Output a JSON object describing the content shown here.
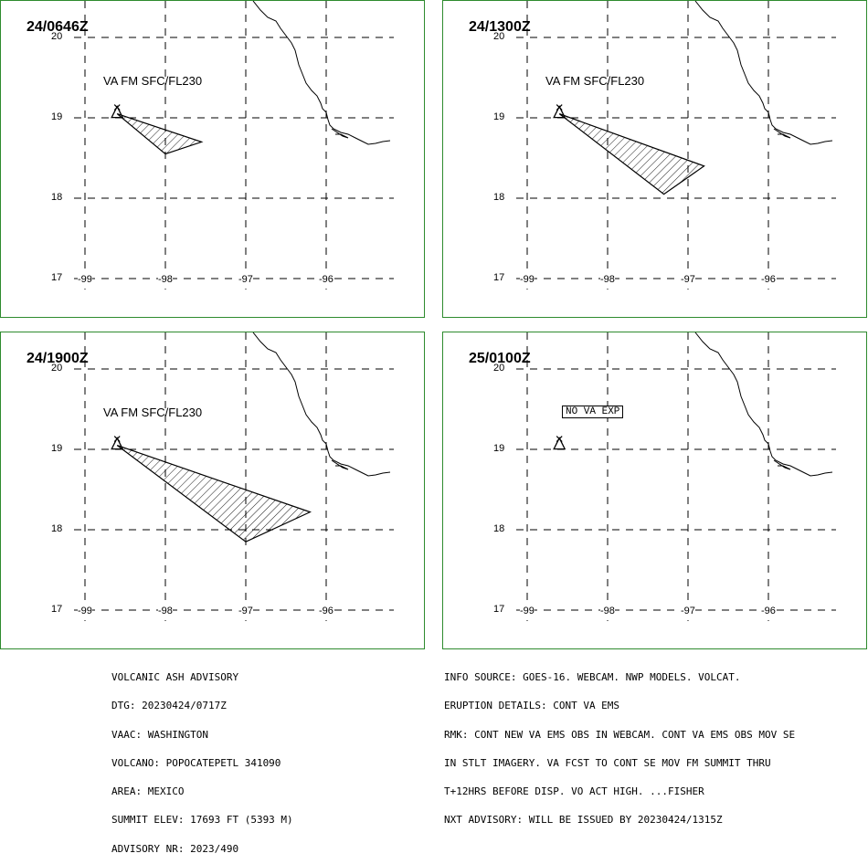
{
  "panels": [
    {
      "time": "24/0646Z",
      "label": "VA FM SFC/FL230",
      "polygon": [
        [
          -98.6,
          19.05
        ],
        [
          -97.55,
          18.7
        ],
        [
          -98.0,
          18.55
        ]
      ]
    },
    {
      "time": "24/1300Z",
      "label": "VA FM SFC/FL230",
      "polygon": [
        [
          -98.6,
          19.05
        ],
        [
          -96.8,
          18.4
        ],
        [
          -97.3,
          18.05
        ]
      ]
    },
    {
      "time": "24/1900Z",
      "label": "VA FM SFC/FL230",
      "polygon": [
        [
          -98.6,
          19.05
        ],
        [
          -96.2,
          18.22
        ],
        [
          -97.0,
          17.85
        ]
      ]
    },
    {
      "time": "25/0100Z",
      "label": "NO VA EXP",
      "polygon": []
    }
  ],
  "axes": {
    "lat_ticks": [
      "20",
      "19",
      "18",
      "17"
    ],
    "lon_ticks": [
      "-99",
      "-98",
      "-97",
      "-96"
    ]
  },
  "volcano": {
    "lon": -98.6,
    "lat": 19.05
  },
  "footer_left": [
    "VOLCANIC ASH ADVISORY",
    "DTG: 20230424/0717Z",
    "VAAC: WASHINGTON",
    "VOLCANO: POPOCATEPETL 341090",
    "AREA: MEXICO",
    "SUMMIT ELEV: 17693 FT (5393 M)",
    "ADVISORY NR: 2023/490"
  ],
  "footer_right": [
    "INFO SOURCE: GOES-16. WEBCAM. NWP MODELS. VOLCAT.",
    "ERUPTION DETAILS: CONT VA EMS",
    "RMK: CONT NEW VA EMS OBS IN WEBCAM. CONT VA EMS OBS MOV SE",
    "IN STLT IMAGERY. VA FCST TO CONT SE MOV FM SUMMIT THRU",
    "T+12HRS BEFORE DISP. VO ACT HIGH. ...FISHER",
    "NXT ADVISORY: WILL BE ISSUED BY 20230424/1315Z"
  ],
  "colors": {
    "frame": "#2e8b2e",
    "ink": "#000000"
  }
}
